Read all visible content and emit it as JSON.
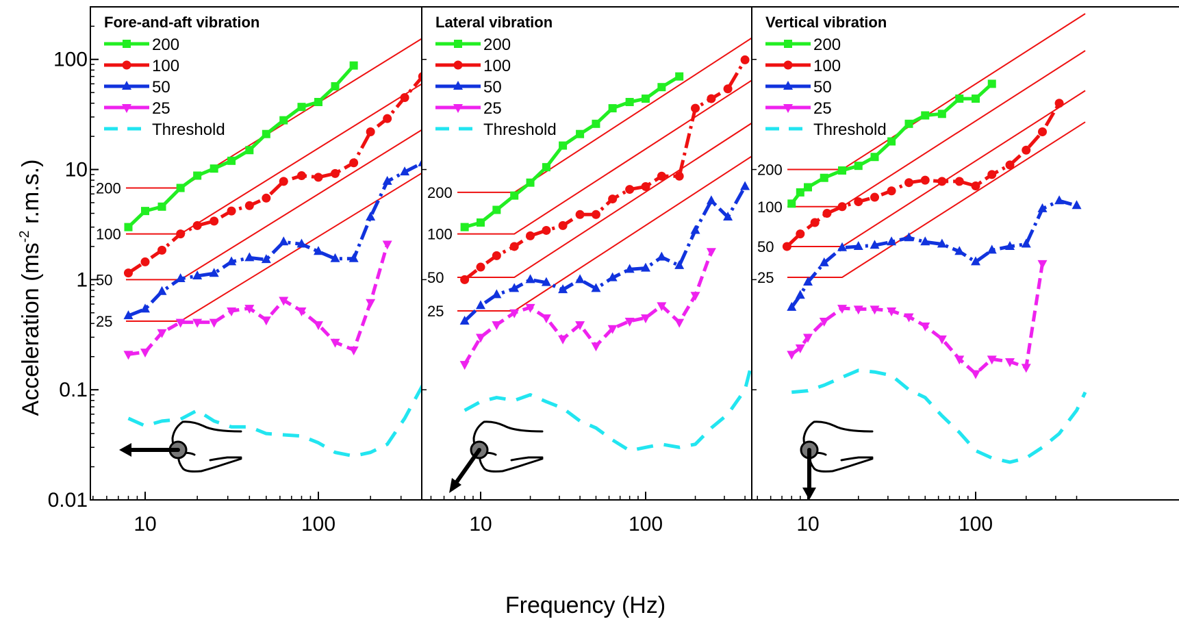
{
  "chart_data": {
    "type": "line",
    "xlabel": "Frequency (Hz)",
    "ylabel": "Acceleration (ms",
    "ylabel_sup": "-2",
    "ylabel_end": " r.m.s.)",
    "x_scale": "log",
    "y_scale": "log",
    "xlim": [
      5,
      450
    ],
    "ylim": [
      0.01,
      300
    ],
    "x_ticks": [
      10,
      100
    ],
    "x_tick_labels": [
      "10",
      "100"
    ],
    "y_ticks": [
      0.01,
      0.1,
      1,
      10,
      100
    ],
    "y_tick_labels": [
      "0.01",
      "0.1",
      "1",
      "10",
      "100"
    ],
    "grid": false,
    "legend_position": "top-left",
    "series_styles": {
      "200": {
        "color": "#22ee22",
        "marker": "square",
        "dash": "solid"
      },
      "100": {
        "color": "#ee1111",
        "marker": "circle",
        "dash": "dashdot"
      },
      "50": {
        "color": "#1133dd",
        "marker": "triangle-up",
        "dash": "dashdot"
      },
      "25": {
        "color": "#ee22ee",
        "marker": "triangle-down",
        "dash": "dashed"
      },
      "Threshold": {
        "color": "#22e5f0",
        "marker": "none",
        "dash": "longdash"
      }
    },
    "reference_line_color": "#ee1111",
    "panels": [
      {
        "title": "Fore-and-aft vibration",
        "icon": "hand-arrow-fore-aft-icon",
        "legend": [
          "200",
          "100",
          "50",
          "25",
          "Threshold"
        ],
        "reference_lines": [
          {
            "label": "200",
            "level": 6.8,
            "knee": 16,
            "end": [
              450,
              175
            ]
          },
          {
            "label": "100",
            "level": 2.6,
            "knee": 16,
            "end": [
              450,
              68
            ]
          },
          {
            "label": "50",
            "level": 1.0,
            "knee": 16,
            "end": [
              450,
              26
            ]
          },
          {
            "label": "25",
            "level": 0.42,
            "knee": 16,
            "end": [
              450,
              10.5
            ]
          }
        ],
        "series": [
          {
            "name": "200",
            "x": [
              8,
              10,
              12.5,
              16,
              20,
              25,
              31.5,
              40,
              50,
              63,
              80,
              100,
              125,
              160
            ],
            "y": [
              3.0,
              4.2,
              4.6,
              6.8,
              8.8,
              10.2,
              12.0,
              15.0,
              21.0,
              28.0,
              37.0,
              41.0,
              57.0,
              88.0
            ]
          },
          {
            "name": "100",
            "x": [
              8,
              10,
              12.5,
              16,
              20,
              25,
              31.5,
              40,
              50,
              63,
              80,
              100,
              125,
              160,
              200,
              250,
              315,
              400
            ],
            "y": [
              1.15,
              1.45,
              1.85,
              2.6,
              3.1,
              3.4,
              4.2,
              4.7,
              5.5,
              7.8,
              8.8,
              8.5,
              9.2,
              11.5,
              22.0,
              29.0,
              45.0,
              70.0
            ]
          },
          {
            "name": "50",
            "x": [
              8,
              10,
              12.5,
              16,
              20,
              25,
              31.5,
              40,
              50,
              63,
              80,
              100,
              125,
              160,
              200,
              250,
              315,
              400
            ],
            "y": [
              0.47,
              0.54,
              0.78,
              1.02,
              1.08,
              1.14,
              1.45,
              1.58,
              1.52,
              2.2,
              2.1,
              1.8,
              1.55,
              1.55,
              3.7,
              7.8,
              9.5,
              11.5
            ]
          },
          {
            "name": "25",
            "x": [
              8,
              10,
              12.5,
              16,
              20,
              25,
              31.5,
              40,
              50,
              63,
              80,
              100,
              125,
              160,
              200,
              250
            ],
            "y": [
              0.21,
              0.22,
              0.33,
              0.41,
              0.41,
              0.41,
              0.52,
              0.55,
              0.43,
              0.65,
              0.52,
              0.39,
              0.27,
              0.23,
              0.62,
              2.1
            ]
          },
          {
            "name": "Threshold",
            "x": [
              8,
              10,
              12.5,
              16,
              20,
              25,
              31.5,
              40,
              50,
              63,
              80,
              100,
              125,
              160,
              200,
              250,
              315,
              400,
              450
            ],
            "y": [
              0.055,
              0.047,
              0.052,
              0.054,
              0.065,
              0.052,
              0.046,
              0.046,
              0.04,
              0.039,
              0.038,
              0.033,
              0.027,
              0.025,
              0.027,
              0.032,
              0.055,
              0.11,
              0.17
            ]
          }
        ]
      },
      {
        "title": "Lateral vibration",
        "icon": "hand-arrow-lateral-icon",
        "legend": [
          "200",
          "100",
          "50",
          "25",
          "Threshold"
        ],
        "reference_lines": [
          {
            "label": "200",
            "level": 6.2,
            "knee": 16,
            "end": [
              450,
              160
            ]
          },
          {
            "label": "100",
            "level": 2.6,
            "knee": 16,
            "end": [
              450,
              66
            ]
          },
          {
            "label": "50",
            "level": 1.05,
            "knee": 16,
            "end": [
              450,
              27
            ]
          },
          {
            "label": "25",
            "level": 0.52,
            "knee": 16,
            "end": [
              450,
              13.5
            ]
          }
        ],
        "series": [
          {
            "name": "200",
            "x": [
              8,
              10,
              12.5,
              16,
              20,
              25,
              31.5,
              40,
              50,
              63,
              80,
              100,
              125,
              160
            ],
            "y": [
              3.0,
              3.3,
              4.3,
              5.8,
              7.6,
              10.5,
              16.5,
              21.0,
              26.0,
              36.0,
              41.0,
              44.0,
              56.0,
              70.0
            ]
          },
          {
            "name": "100",
            "x": [
              8,
              10,
              12.5,
              16,
              20,
              25,
              31.5,
              40,
              50,
              63,
              80,
              100,
              125,
              160,
              200,
              250,
              315,
              400
            ],
            "y": [
              1.0,
              1.3,
              1.65,
              2.0,
              2.5,
              2.8,
              3.1,
              3.9,
              3.9,
              5.4,
              6.6,
              7.0,
              8.7,
              8.7,
              36.0,
              44.0,
              54.0,
              99.0
            ]
          },
          {
            "name": "50",
            "x": [
              8,
              10,
              12.5,
              16,
              20,
              25,
              31.5,
              40,
              50,
              63,
              80,
              100,
              125,
              160,
              200,
              250,
              315,
              400
            ],
            "y": [
              0.42,
              0.58,
              0.73,
              0.83,
              1.0,
              0.94,
              0.81,
              1.0,
              0.83,
              1.04,
              1.24,
              1.27,
              1.6,
              1.34,
              2.8,
              5.2,
              3.7,
              7.0
            ]
          },
          {
            "name": "25",
            "x": [
              8,
              10,
              12.5,
              16,
              20,
              25,
              31.5,
              40,
              50,
              63,
              80,
              100,
              125,
              160,
              200,
              250
            ],
            "y": [
              0.17,
              0.3,
              0.39,
              0.5,
              0.56,
              0.45,
              0.29,
              0.39,
              0.25,
              0.36,
              0.42,
              0.45,
              0.58,
              0.41,
              0.72,
              1.8
            ]
          },
          {
            "name": "Threshold",
            "x": [
              8,
              10,
              12.5,
              16,
              20,
              25,
              31.5,
              40,
              50,
              63,
              80,
              100,
              125,
              160,
              200,
              250,
              315,
              400,
              450
            ],
            "y": [
              0.065,
              0.078,
              0.085,
              0.08,
              0.09,
              0.078,
              0.068,
              0.052,
              0.045,
              0.035,
              0.028,
              0.03,
              0.032,
              0.03,
              0.032,
              0.045,
              0.06,
              0.1,
              0.2
            ]
          }
        ]
      },
      {
        "title": "Vertical vibration",
        "icon": "hand-arrow-vertical-icon",
        "legend": [
          "200",
          "100",
          "50",
          "25",
          "Threshold"
        ],
        "reference_lines": [
          {
            "label": "200",
            "level": 10.0,
            "knee": 16,
            "end": [
              450,
              260
            ]
          },
          {
            "label": "100",
            "level": 4.6,
            "knee": 16,
            "end": [
              450,
              120
            ]
          },
          {
            "label": "50",
            "level": 2.0,
            "knee": 16,
            "end": [
              450,
              52
            ]
          },
          {
            "label": "25",
            "level": 1.05,
            "knee": 16,
            "end": [
              450,
              27
            ]
          }
        ],
        "series": [
          {
            "name": "200",
            "x": [
              8,
              9,
              10,
              12.5,
              16,
              20,
              25,
              31.5,
              40,
              50,
              63,
              80,
              100,
              125
            ],
            "y": [
              4.9,
              6.2,
              6.9,
              8.4,
              9.8,
              10.8,
              13.0,
              18.0,
              26.0,
              31.0,
              32.0,
              44.0,
              44.0,
              60.0
            ]
          },
          {
            "name": "100",
            "x": [
              7.5,
              9,
              11,
              13,
              16,
              20,
              25,
              31.5,
              40,
              50,
              63,
              80,
              100,
              125,
              160,
              200,
              250,
              315
            ],
            "y": [
              2.0,
              2.6,
              3.3,
              4.0,
              4.6,
              5.1,
              5.6,
              6.4,
              7.6,
              8.0,
              7.8,
              7.8,
              7.1,
              9.0,
              11.0,
              15.0,
              22.0,
              40.0
            ]
          },
          {
            "name": "50",
            "x": [
              8,
              9,
              10,
              12.5,
              16,
              20,
              25,
              31.5,
              40,
              50,
              63,
              80,
              100,
              125,
              160,
              200,
              250,
              315,
              400
            ],
            "y": [
              0.56,
              0.72,
              0.95,
              1.42,
              1.95,
              2.0,
              2.05,
              2.2,
              2.4,
              2.2,
              2.1,
              1.8,
              1.45,
              1.85,
              2.0,
              2.1,
              4.4,
              5.2,
              4.7
            ]
          },
          {
            "name": "25",
            "x": [
              8,
              9,
              10,
              12.5,
              16,
              20,
              25,
              31.5,
              40,
              50,
              63,
              80,
              100,
              125,
              160,
              200,
              250
            ],
            "y": [
              0.21,
              0.24,
              0.3,
              0.42,
              0.55,
              0.54,
              0.54,
              0.52,
              0.46,
              0.38,
              0.29,
              0.19,
              0.14,
              0.19,
              0.18,
              0.16,
              1.4
            ]
          },
          {
            "name": "Threshold",
            "x": [
              8,
              10,
              12.5,
              16,
              20,
              25,
              31.5,
              40,
              50,
              63,
              80,
              100,
              125,
              160,
              200,
              250,
              315,
              400,
              450
            ],
            "y": [
              0.095,
              0.098,
              0.11,
              0.13,
              0.15,
              0.145,
              0.135,
              0.1,
              0.085,
              0.058,
              0.041,
              0.028,
              0.024,
              0.022,
              0.024,
              0.03,
              0.04,
              0.065,
              0.095
            ]
          }
        ]
      }
    ]
  }
}
